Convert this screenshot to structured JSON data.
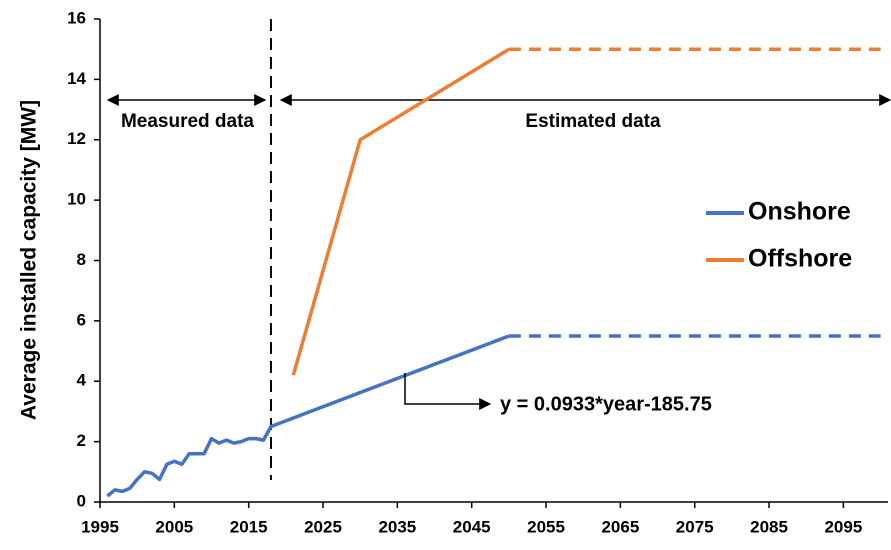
{
  "chart_data": {
    "type": "line",
    "y_label": "Average installed capacity [MW]",
    "xlim": [
      1995,
      2101
    ],
    "xticks": [
      1995,
      2005,
      2015,
      2025,
      2035,
      2045,
      2055,
      2065,
      2075,
      2085,
      2095
    ],
    "ylim": [
      0,
      16
    ],
    "yticks": [
      0,
      2,
      4,
      6,
      8,
      10,
      12,
      14,
      16
    ],
    "grid": false,
    "series": [
      {
        "name": "Onshore",
        "color": "#4472c4",
        "x": [
          1996,
          1997,
          1998,
          1999,
          2000,
          2001,
          2002,
          2003,
          2004,
          2005,
          2006,
          2007,
          2008,
          2009,
          2010,
          2011,
          2012,
          2013,
          2014,
          2015,
          2016,
          2017,
          2018,
          2050
        ],
        "values": [
          0.2,
          0.4,
          0.35,
          0.45,
          0.75,
          1.0,
          0.95,
          0.75,
          1.25,
          1.35,
          1.25,
          1.6,
          1.6,
          1.6,
          2.1,
          1.95,
          2.05,
          1.95,
          2.0,
          2.1,
          2.1,
          2.05,
          2.5,
          5.5
        ],
        "extension": {
          "x": [
            2050,
            2100
          ],
          "values": [
            5.5,
            5.5
          ]
        }
      },
      {
        "name": "Offshore",
        "color": "#ed7d31",
        "x": [
          2021,
          2030,
          2050
        ],
        "values": [
          4.2,
          12,
          15
        ],
        "extension": {
          "x": [
            2050,
            2100
          ],
          "values": [
            15,
            15
          ]
        }
      }
    ],
    "divider_x": 2018,
    "annotations": {
      "measured": "Measured data",
      "estimated": "Estimated data",
      "fit": "y = 0.0933*year-185.75"
    }
  }
}
